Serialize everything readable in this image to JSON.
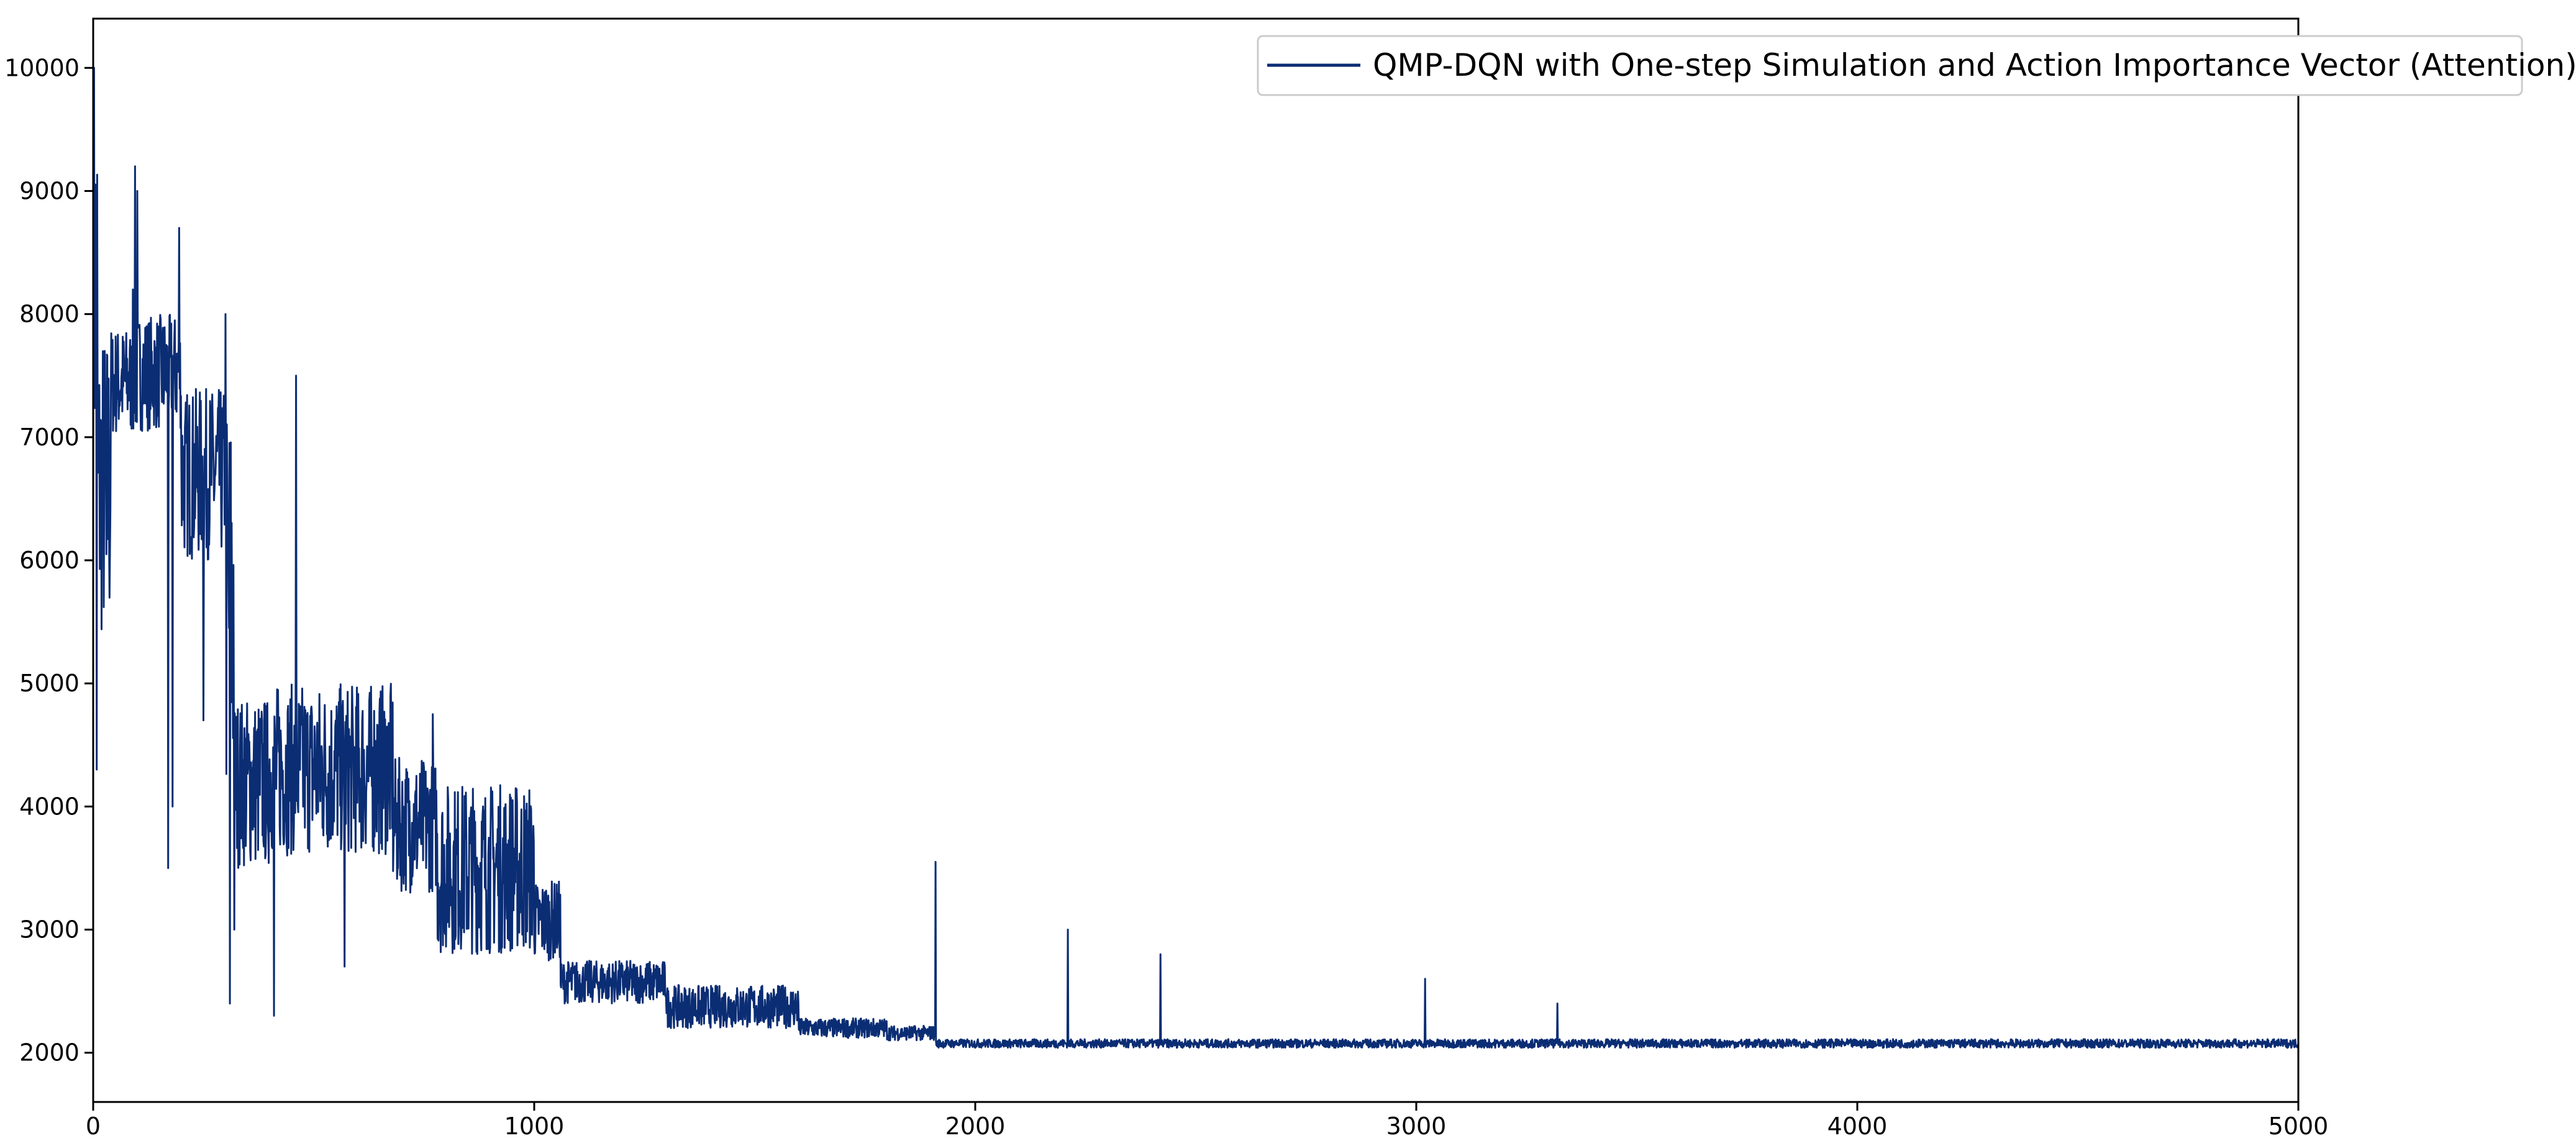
{
  "chart_data": {
    "type": "line",
    "title": "",
    "xlabel": "",
    "ylabel": "",
    "xlim": [
      0,
      5000
    ],
    "ylim": [
      1600,
      10400
    ],
    "x_ticks": [
      0,
      1000,
      2000,
      3000,
      4000,
      5000
    ],
    "y_ticks": [
      2000,
      3000,
      4000,
      5000,
      6000,
      7000,
      8000,
      9000,
      10000
    ],
    "grid": false,
    "legend_position": "top-right",
    "series": [
      {
        "name": "QMP-DQN with One-step Simulation and Action Importance Vector (Attention)",
        "color": "#0b2d74",
        "noise_seed": 7,
        "bands": [
          {
            "x_start": 0,
            "x_end": 10,
            "low": 6500,
            "high": 10000
          },
          {
            "x_start": 10,
            "x_end": 40,
            "low": 5300,
            "high": 7900
          },
          {
            "x_start": 40,
            "x_end": 100,
            "low": 7000,
            "high": 7900
          },
          {
            "x_start": 100,
            "x_end": 200,
            "low": 7050,
            "high": 8000
          },
          {
            "x_start": 200,
            "x_end": 300,
            "low": 6000,
            "high": 7400
          },
          {
            "x_start": 300,
            "x_end": 320,
            "low": 3900,
            "high": 7400
          },
          {
            "x_start": 320,
            "x_end": 400,
            "low": 3500,
            "high": 4900
          },
          {
            "x_start": 400,
            "x_end": 680,
            "low": 3600,
            "high": 5000
          },
          {
            "x_start": 680,
            "x_end": 780,
            "low": 3300,
            "high": 4400
          },
          {
            "x_start": 780,
            "x_end": 1000,
            "low": 2800,
            "high": 4200
          },
          {
            "x_start": 1000,
            "x_end": 1060,
            "low": 2750,
            "high": 3400
          },
          {
            "x_start": 1060,
            "x_end": 1300,
            "low": 2400,
            "high": 2750
          },
          {
            "x_start": 1300,
            "x_end": 1600,
            "low": 2200,
            "high": 2550
          },
          {
            "x_start": 1600,
            "x_end": 1800,
            "low": 2120,
            "high": 2280
          },
          {
            "x_start": 1800,
            "x_end": 1910,
            "low": 2100,
            "high": 2220
          },
          {
            "x_start": 1910,
            "x_end": 5000,
            "low": 2040,
            "high": 2110
          }
        ],
        "spikes": [
          {
            "x": 2,
            "y": 10000
          },
          {
            "x": 8,
            "y": 4300
          },
          {
            "x": 30,
            "y": 6050
          },
          {
            "x": 90,
            "y": 8200
          },
          {
            "x": 95,
            "y": 9200
          },
          {
            "x": 100,
            "y": 9000
          },
          {
            "x": 170,
            "y": 3500
          },
          {
            "x": 180,
            "y": 4000
          },
          {
            "x": 195,
            "y": 8700
          },
          {
            "x": 250,
            "y": 4700
          },
          {
            "x": 300,
            "y": 8000
          },
          {
            "x": 310,
            "y": 2400
          },
          {
            "x": 320,
            "y": 3000
          },
          {
            "x": 410,
            "y": 2300
          },
          {
            "x": 460,
            "y": 7500
          },
          {
            "x": 570,
            "y": 2700
          },
          {
            "x": 770,
            "y": 4750
          },
          {
            "x": 1910,
            "y": 3550
          },
          {
            "x": 2210,
            "y": 3000
          },
          {
            "x": 2420,
            "y": 2800
          },
          {
            "x": 3020,
            "y": 2600
          },
          {
            "x": 3320,
            "y": 2400
          }
        ]
      }
    ]
  }
}
